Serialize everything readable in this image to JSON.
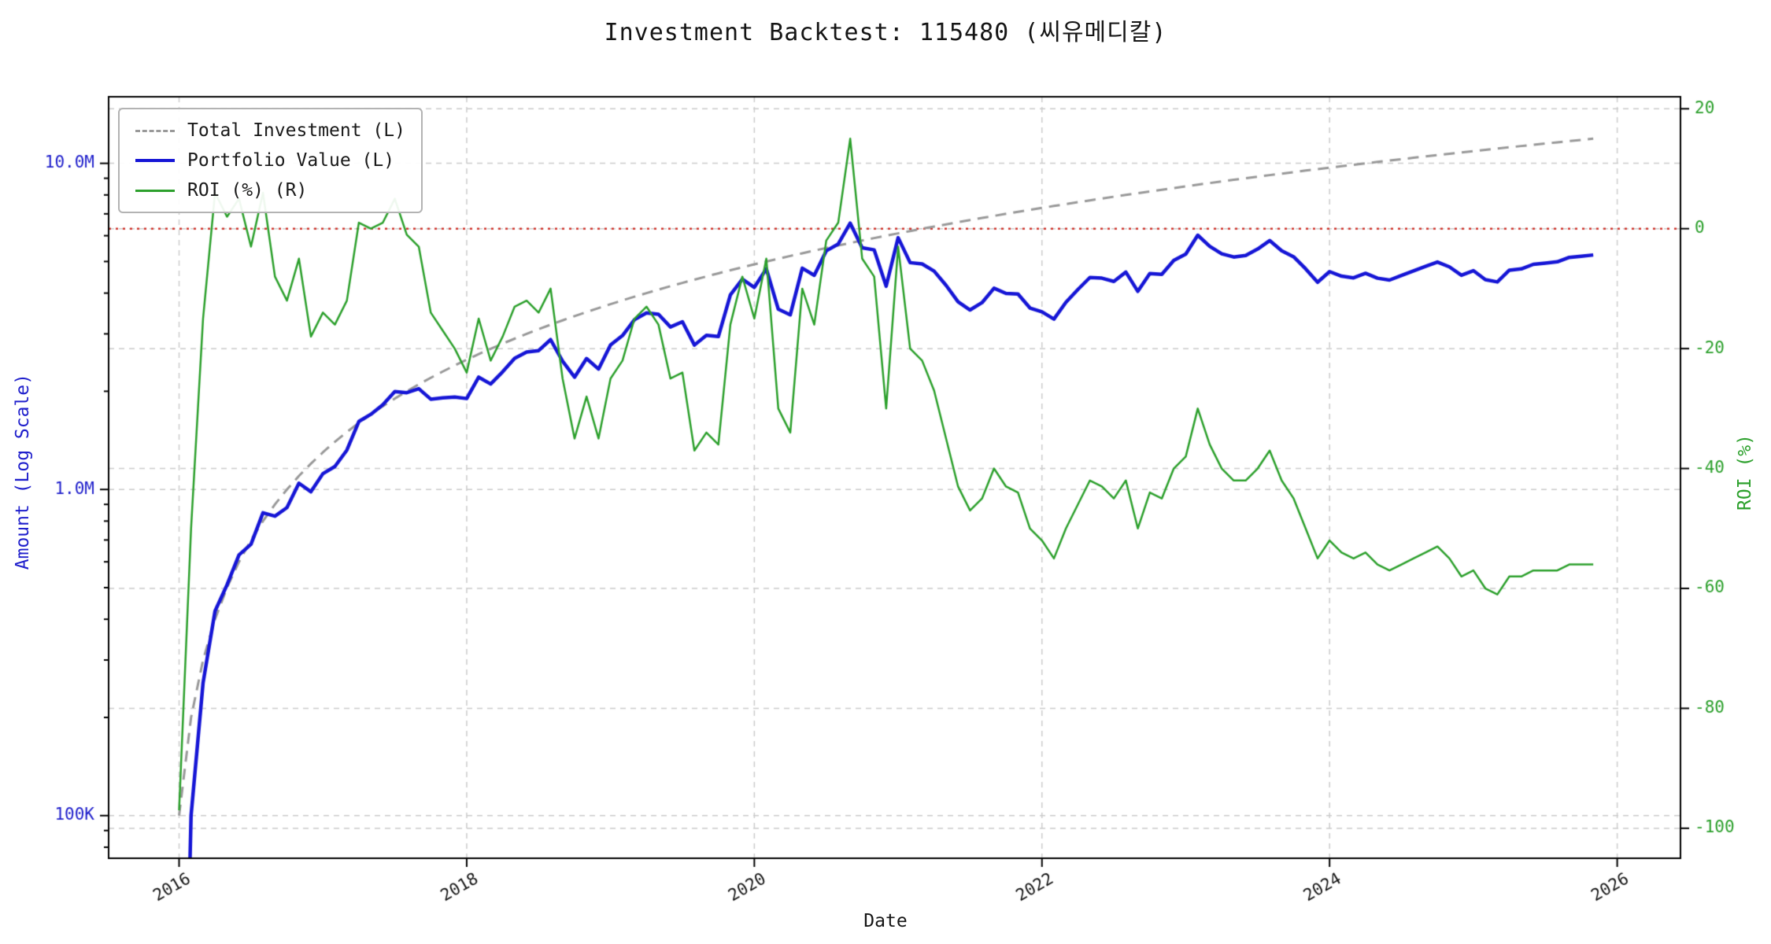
{
  "chart_data": {
    "type": "line",
    "title": "Investment Backtest: 115480 (씨유메디칼)",
    "xlabel": "Date",
    "ylabel_left": "Amount (Log Scale)",
    "ylabel_right": "ROI (%)",
    "x_start_year": 2016.0,
    "x_step_months": 1,
    "x_note": "monthly points from 2016-01 to 2025-11",
    "xlim": [
      2015.51,
      2026.44
    ],
    "x_ticks": [
      {
        "value": 2016,
        "label": "2016"
      },
      {
        "value": 2018,
        "label": "2018"
      },
      {
        "value": 2020,
        "label": "2020"
      },
      {
        "value": 2022,
        "label": "2022"
      },
      {
        "value": 2024,
        "label": "2024"
      },
      {
        "value": 2026,
        "label": "2026"
      }
    ],
    "left_axis": {
      "scale": "log",
      "color": "#2020cc",
      "lim": [
        74000,
        16000000
      ],
      "ticks": [
        {
          "value": 100000,
          "label": "100K"
        },
        {
          "value": 1000000,
          "label": "1.0M"
        },
        {
          "value": 10000000,
          "label": "10.0M"
        }
      ]
    },
    "right_axis": {
      "scale": "linear",
      "color": "#2ca02c",
      "lim": [
        -105,
        22
      ],
      "ticks": [
        {
          "value": 20,
          "label": "20"
        },
        {
          "value": 0,
          "label": "0"
        },
        {
          "value": -20,
          "label": "-20"
        },
        {
          "value": -40,
          "label": "-40"
        },
        {
          "value": -60,
          "label": "-60"
        },
        {
          "value": -80,
          "label": "-80"
        },
        {
          "value": -100,
          "label": "-100"
        }
      ]
    },
    "zero_line": {
      "value": 0,
      "axis": "right",
      "color": "#d0342c",
      "style": "dotted"
    },
    "grid": {
      "color": "#cccccc",
      "style": "dashed"
    },
    "legend_position": "upper-left",
    "series": [
      {
        "name": "Total Investment (L)",
        "axis": "left",
        "unit": "millions",
        "color": "#999999",
        "style": "dashed",
        "line_width": 3,
        "values": [
          0.1,
          0.2,
          0.3,
          0.4,
          0.5,
          0.6,
          0.7,
          0.8,
          0.9,
          1.0,
          1.1,
          1.2,
          1.3,
          1.4,
          1.5,
          1.6,
          1.7,
          1.8,
          1.9,
          2.0,
          2.1,
          2.2,
          2.3,
          2.4,
          2.5,
          2.6,
          2.7,
          2.8,
          2.9,
          3.0,
          3.1,
          3.2,
          3.3,
          3.4,
          3.5,
          3.6,
          3.7,
          3.8,
          3.9,
          4.0,
          4.1,
          4.2,
          4.3,
          4.4,
          4.5,
          4.6,
          4.7,
          4.8,
          4.9,
          5.0,
          5.1,
          5.2,
          5.3,
          5.4,
          5.5,
          5.6,
          5.7,
          5.8,
          5.9,
          6.0,
          6.1,
          6.2,
          6.3,
          6.4,
          6.5,
          6.6,
          6.7,
          6.8,
          6.9,
          7.0,
          7.1,
          7.2,
          7.3,
          7.4,
          7.5,
          7.6,
          7.7,
          7.8,
          7.9,
          8.0,
          8.1,
          8.2,
          8.3,
          8.4,
          8.5,
          8.6,
          8.7,
          8.8,
          8.9,
          9.0,
          9.1,
          9.2,
          9.3,
          9.4,
          9.5,
          9.6,
          9.7,
          9.8,
          9.9,
          10.0,
          10.1,
          10.2,
          10.3,
          10.4,
          10.5,
          10.6,
          10.7,
          10.8,
          10.9,
          11.0,
          11.1,
          11.2,
          11.3,
          11.4,
          11.5,
          11.6,
          11.7,
          11.8,
          11.9
        ]
      },
      {
        "name": "Portfolio Value (L)",
        "axis": "left",
        "unit": "millions",
        "color": "#1616d6",
        "style": "solid",
        "line_width": 4.5,
        "values": [
          0.003,
          0.1,
          0.255,
          0.424,
          0.51,
          0.63,
          0.679,
          0.848,
          0.828,
          0.88,
          1.045,
          0.984,
          1.118,
          1.176,
          1.32,
          1.616,
          1.7,
          1.818,
          1.995,
          1.98,
          2.037,
          1.892,
          1.909,
          1.92,
          1.9,
          2.21,
          2.106,
          2.296,
          2.523,
          2.64,
          2.666,
          2.88,
          2.475,
          2.21,
          2.52,
          2.34,
          2.775,
          2.964,
          3.315,
          3.48,
          3.444,
          3.15,
          3.268,
          2.772,
          2.97,
          2.944,
          3.948,
          4.416,
          4.165,
          4.75,
          3.57,
          3.432,
          4.77,
          4.536,
          5.39,
          5.656,
          6.555,
          5.51,
          5.428,
          4.2,
          5.917,
          4.96,
          4.914,
          4.672,
          4.225,
          3.762,
          3.551,
          3.74,
          4.14,
          3.99,
          3.976,
          3.6,
          3.504,
          3.33,
          3.75,
          4.104,
          4.466,
          4.446,
          4.345,
          4.64,
          4.05,
          4.592,
          4.565,
          5.04,
          5.27,
          6.02,
          5.568,
          5.28,
          5.162,
          5.22,
          5.46,
          5.796,
          5.394,
          5.17,
          4.75,
          4.32,
          4.656,
          4.508,
          4.455,
          4.6,
          4.444,
          4.386,
          4.532,
          4.68,
          4.83,
          4.982,
          4.815,
          4.536,
          4.687,
          4.4,
          4.329,
          4.704,
          4.746,
          4.902,
          4.945,
          4.988,
          5.148,
          5.192,
          5.236
        ]
      },
      {
        "name": "ROI (%) (R)",
        "axis": "right",
        "unit": "percent",
        "color": "#2ca02c",
        "style": "solid",
        "line_width": 2.5,
        "values": [
          -97,
          -50,
          -15,
          6,
          2,
          5,
          -3,
          6,
          -8,
          -12,
          -5,
          -18,
          -14,
          -16,
          -12,
          1,
          0,
          1,
          5,
          -1,
          -3,
          -14,
          -17,
          -20,
          -24,
          -15,
          -22,
          -18,
          -13,
          -12,
          -14,
          -10,
          -25,
          -35,
          -28,
          -35,
          -25,
          -22,
          -15,
          -13,
          -16,
          -25,
          -24,
          -37,
          -34,
          -36,
          -16,
          -8,
          -15,
          -5,
          -30,
          -34,
          -10,
          -16,
          -2,
          1,
          15,
          -5,
          -8,
          -30,
          -3,
          -20,
          -22,
          -27,
          -35,
          -43,
          -47,
          -45,
          -40,
          -43,
          -44,
          -50,
          -52,
          -55,
          -50,
          -46,
          -42,
          -43,
          -45,
          -42,
          -50,
          -44,
          -45,
          -40,
          -38,
          -30,
          -36,
          -40,
          -42,
          -42,
          -40,
          -37,
          -42,
          -45,
          -50,
          -55,
          -52,
          -54,
          -55,
          -54,
          -56,
          -57,
          -56,
          -55,
          -54,
          -53,
          -55,
          -58,
          -57,
          -60,
          -61,
          -58,
          -58,
          -57,
          -57,
          -57,
          -56,
          -56,
          -56
        ]
      }
    ]
  }
}
